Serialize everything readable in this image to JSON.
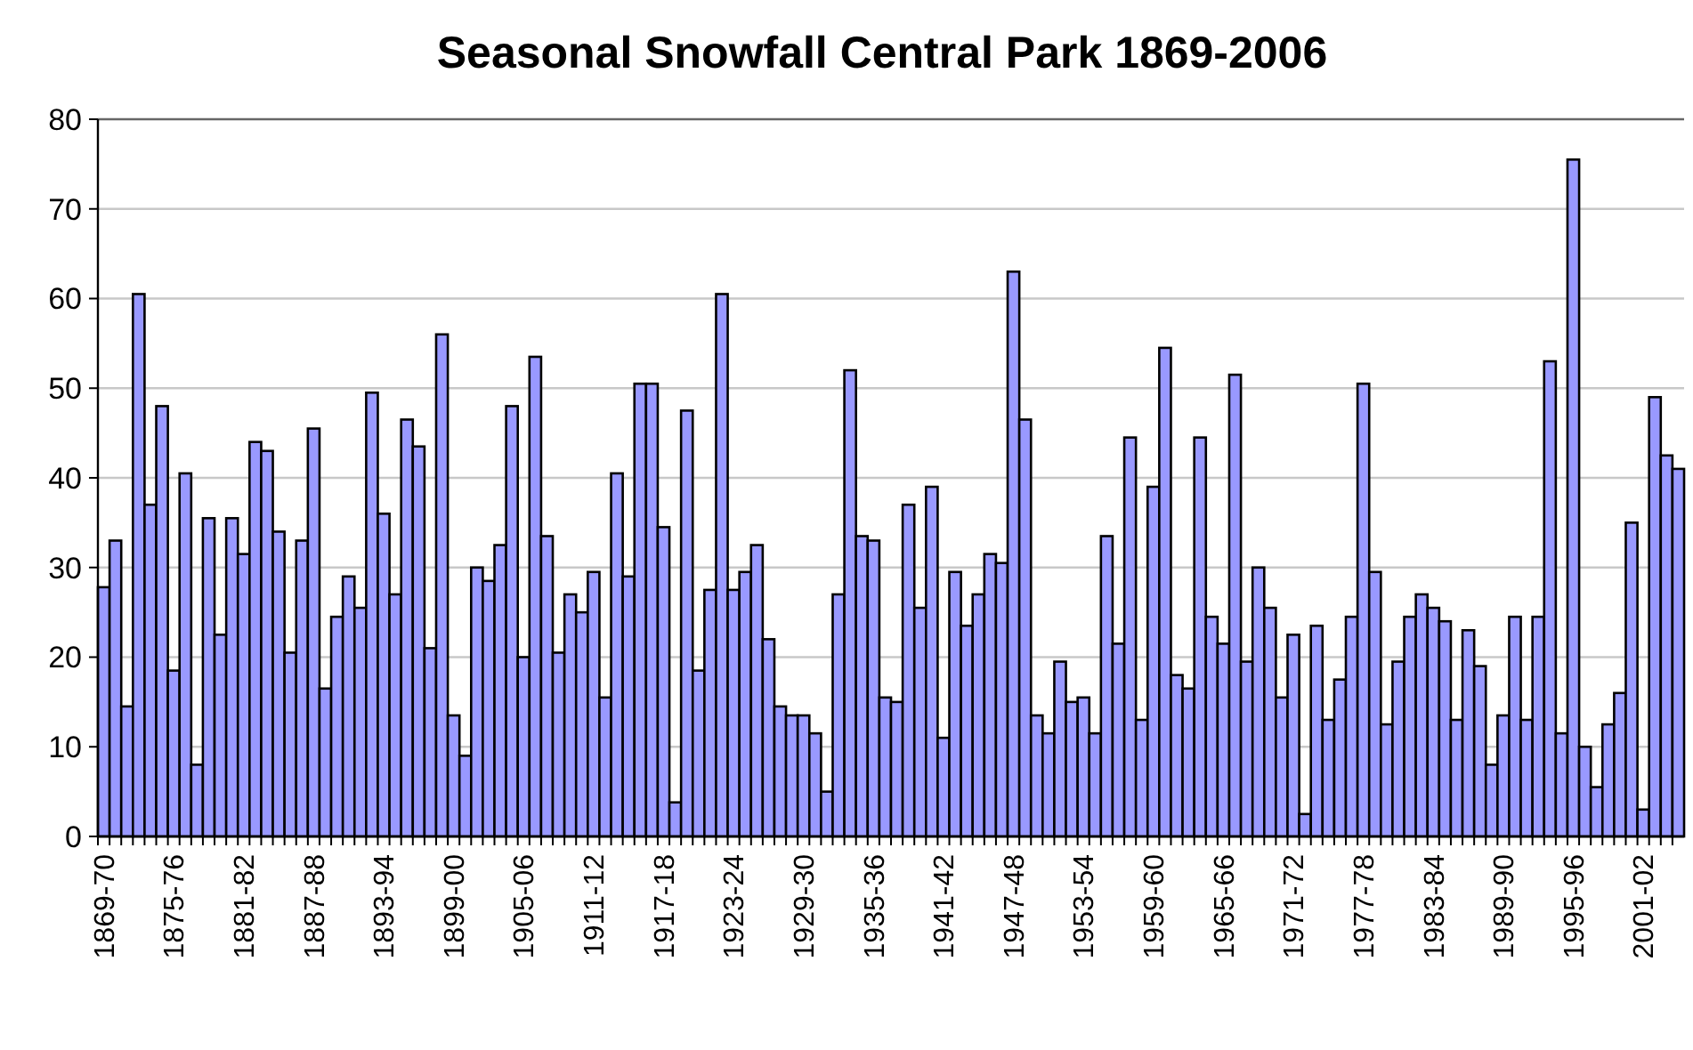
{
  "chart_data": {
    "type": "bar",
    "title": "Seasonal Snowfall Central Park 1869-2006",
    "categories": [
      "1869-70",
      null,
      null,
      null,
      null,
      null,
      "1875-76",
      null,
      null,
      null,
      null,
      null,
      "1881-82",
      null,
      null,
      null,
      null,
      null,
      "1887-88",
      null,
      null,
      null,
      null,
      null,
      "1893-94",
      null,
      null,
      null,
      null,
      null,
      "1899-00",
      null,
      null,
      null,
      null,
      null,
      "1905-06",
      null,
      null,
      null,
      null,
      null,
      "1911-12",
      null,
      null,
      null,
      null,
      null,
      "1917-18",
      null,
      null,
      null,
      null,
      null,
      "1923-24",
      null,
      null,
      null,
      null,
      null,
      "1929-30",
      null,
      null,
      null,
      null,
      null,
      "1935-36",
      null,
      null,
      null,
      null,
      null,
      "1941-42",
      null,
      null,
      null,
      null,
      null,
      "1947-48",
      null,
      null,
      null,
      null,
      null,
      "1953-54",
      null,
      null,
      null,
      null,
      null,
      "1959-60",
      null,
      null,
      null,
      null,
      null,
      "1965-66",
      null,
      null,
      null,
      null,
      null,
      "1971-72",
      null,
      null,
      null,
      null,
      null,
      "1977-78",
      null,
      null,
      null,
      null,
      null,
      "1983-84",
      null,
      null,
      null,
      null,
      null,
      "1989-90",
      null,
      null,
      null,
      null,
      null,
      "1995-96",
      null,
      null,
      null,
      null,
      null,
      "2001-02",
      null,
      null,
      null
    ],
    "values": [
      27.8,
      33,
      14.5,
      60.5,
      37,
      48,
      18.5,
      40.5,
      8,
      35.5,
      22.5,
      35.5,
      31.5,
      44,
      43,
      34,
      20.5,
      33,
      45.5,
      16.5,
      24.5,
      29,
      25.5,
      49.5,
      36,
      27,
      46.5,
      43.5,
      21,
      56,
      13.5,
      9,
      30,
      28.5,
      32.5,
      48,
      20,
      53.5,
      33.5,
      20.5,
      27,
      25,
      29.5,
      15.5,
      40.5,
      29,
      50.5,
      50.5,
      34.5,
      3.8,
      47.5,
      18.5,
      27.5,
      60.5,
      27.5,
      29.5,
      32.5,
      22,
      14.5,
      13.5,
      13.5,
      11.5,
      5,
      27,
      52,
      33.5,
      33,
      15.5,
      15,
      37,
      25.5,
      39,
      11,
      29.5,
      23.5,
      27,
      31.5,
      30.5,
      63,
      46.5,
      13.5,
      11.5,
      19.5,
      15,
      15.5,
      11.5,
      33.5,
      21.5,
      44.5,
      13,
      39,
      54.5,
      18,
      16.5,
      44.5,
      24.5,
      21.5,
      51.5,
      19.5,
      30,
      25.5,
      15.5,
      22.5,
      2.5,
      23.5,
      13,
      17.5,
      24.5,
      50.5,
      29.5,
      12.5,
      19.5,
      24.5,
      27,
      25.5,
      24,
      13,
      23,
      19,
      8,
      13.5,
      24.5,
      13,
      24.5,
      53,
      11.5,
      75.5,
      10,
      5.5,
      12.5,
      16,
      35,
      3,
      49,
      42.5,
      41
    ],
    "color": "#9999ff",
    "ylim": [
      0,
      80
    ],
    "yticks": [
      0,
      10,
      20,
      30,
      40,
      50,
      60,
      70,
      80
    ],
    "grid": "y"
  }
}
